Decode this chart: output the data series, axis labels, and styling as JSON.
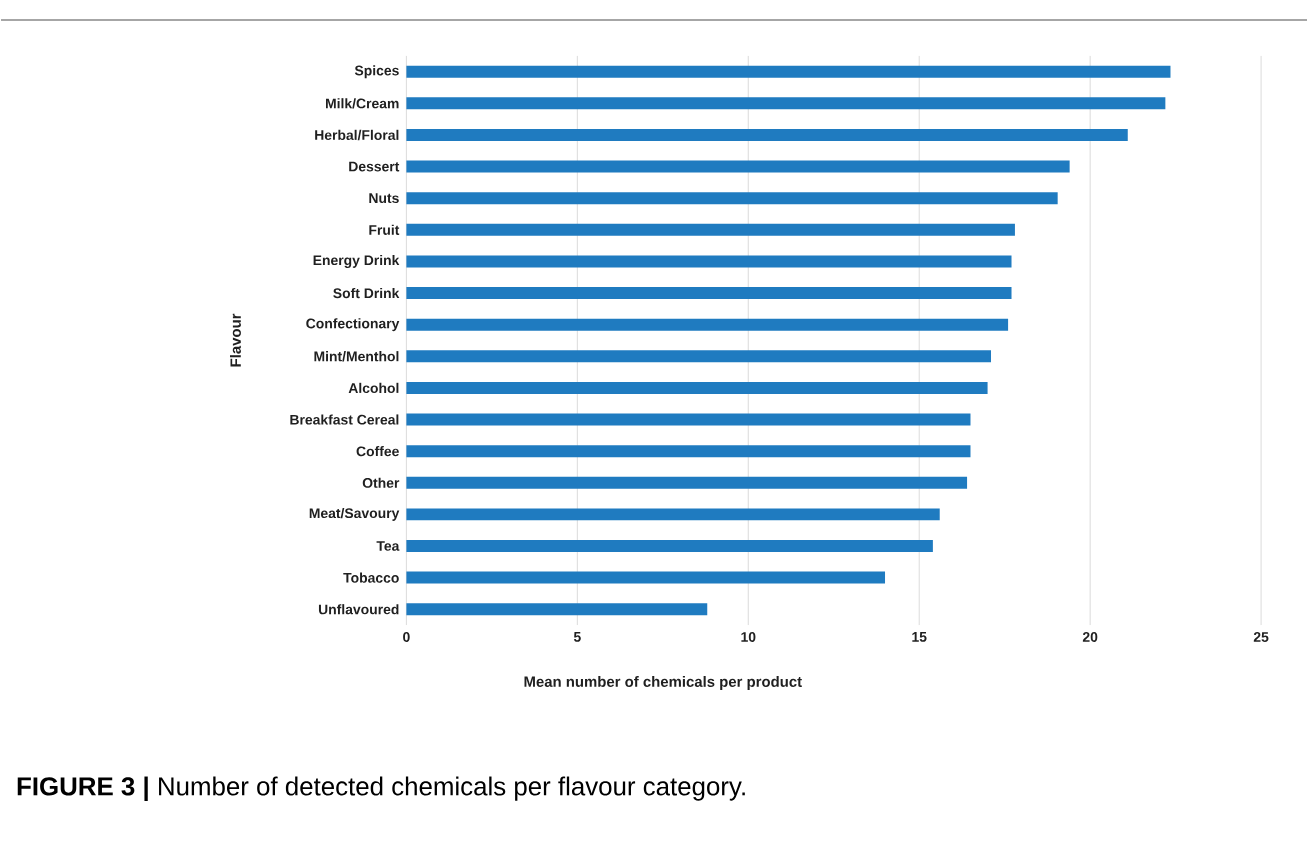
{
  "chart_data": {
    "type": "bar",
    "orientation": "horizontal",
    "categories": [
      "Spices",
      "Milk/Cream",
      "Herbal/Floral",
      "Dessert",
      "Nuts",
      "Fruit",
      "Energy Drink",
      "Soft Drink",
      "Confectionary",
      "Mint/Menthol",
      "Alcohol",
      "Breakfast Cereal",
      "Coffee",
      "Other",
      "Meat/Savoury",
      "Tea",
      "Tobacco",
      "Unflavoured"
    ],
    "values": [
      22.35,
      22.2,
      21.1,
      19.4,
      19.05,
      17.8,
      17.7,
      17.7,
      17.6,
      17.1,
      17.0,
      16.5,
      16.5,
      16.4,
      15.6,
      15.4,
      14.0,
      8.8
    ],
    "color": "#1f7bc0",
    "xlim": [
      0,
      25
    ],
    "xticks": [
      0,
      5,
      10,
      15,
      20,
      25
    ],
    "grid": "x",
    "xlabel": "Mean number of chemicals per product",
    "ylabel": "Flavour",
    "annotations": [
      "**FIGURE 3 |** Number of detected chemicals per flavour category."
    ]
  }
}
